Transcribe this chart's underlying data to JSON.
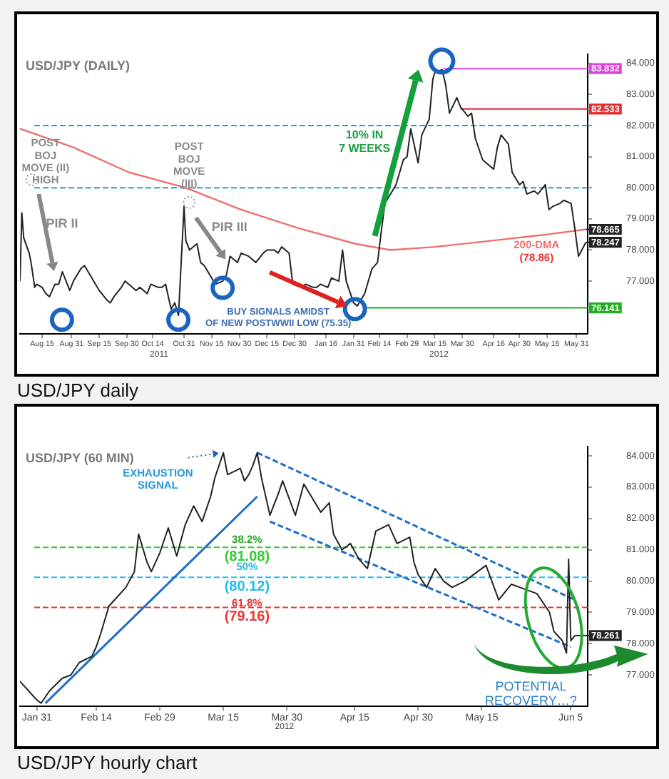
{
  "chart_data": [
    {
      "type": "line",
      "title": "USD/JPY (DAILY)",
      "xlim": [
        "2011-08-03",
        "2012-06-06"
      ],
      "xticks": [
        {
          "value": "2011-08-15",
          "label": "Aug 15"
        },
        {
          "value": "2011-08-31",
          "label": "Aug 31"
        },
        {
          "value": "2011-09-15",
          "label": "Sep 15"
        },
        {
          "value": "2011-09-30",
          "label": "Sep 30"
        },
        {
          "value": "2011-10-14",
          "label": "Oct 14"
        },
        {
          "value": "2011-10-31",
          "label": "Oct 31"
        },
        {
          "value": "2011-11-15",
          "label": "Nov 15"
        },
        {
          "value": "2011-11-30",
          "label": "Nov 30"
        },
        {
          "value": "2011-12-15",
          "label": "Dec 15"
        },
        {
          "value": "2011-12-30",
          "label": "Dec 30"
        },
        {
          "value": "2012-01-16",
          "label": "Jan 16"
        },
        {
          "value": "2012-01-31",
          "label": "Jan 31"
        },
        {
          "value": "2012-02-14",
          "label": "Feb 14"
        },
        {
          "value": "2012-02-29",
          "label": "Feb 29"
        },
        {
          "value": "2012-03-15",
          "label": "Mar 15"
        },
        {
          "value": "2012-03-30",
          "label": "Mar 30"
        },
        {
          "value": "2012-04-16",
          "label": "Apr 16"
        },
        {
          "value": "2012-04-30",
          "label": "Apr 30"
        },
        {
          "value": "2012-05-15",
          "label": "May 15"
        },
        {
          "value": "2012-05-31",
          "label": "May 31"
        }
      ],
      "ylim": [
        75.3,
        84.3
      ],
      "yticks": [
        {
          "value": 77,
          "label": "77.000"
        },
        {
          "value": 78,
          "label": "78.000"
        },
        {
          "value": 79,
          "label": "79.000"
        },
        {
          "value": 80,
          "label": "80.000"
        },
        {
          "value": 81,
          "label": "81.000"
        },
        {
          "value": 82,
          "label": "82.000"
        },
        {
          "value": 83,
          "label": "83.000"
        },
        {
          "value": 84,
          "label": "84.000"
        }
      ],
      "series": [
        {
          "color": "#222222",
          "x": [
            "2011-08-03",
            "2011-08-04",
            "2011-08-05",
            "2011-08-08",
            "2011-08-09",
            "2011-08-11",
            "2011-08-12",
            "2011-08-15",
            "2011-08-17",
            "2011-08-19",
            "2011-08-22",
            "2011-08-24",
            "2011-08-26",
            "2011-08-30",
            "2011-09-01",
            "2011-09-05",
            "2011-09-07",
            "2011-09-09",
            "2011-09-13",
            "2011-09-15",
            "2011-09-19",
            "2011-09-21",
            "2011-09-23",
            "2011-09-27",
            "2011-09-29",
            "2011-10-03",
            "2011-10-05",
            "2011-10-07",
            "2011-10-11",
            "2011-10-13",
            "2011-10-17",
            "2011-10-19",
            "2011-10-21",
            "2011-10-24",
            "2011-10-26",
            "2011-10-28",
            "2011-10-31",
            "2011-11-01",
            "2011-11-03",
            "2011-11-07",
            "2011-11-09",
            "2011-11-11",
            "2011-11-15",
            "2011-11-17",
            "2011-11-21",
            "2011-11-23",
            "2011-11-25",
            "2011-11-29",
            "2011-12-01",
            "2011-12-05",
            "2011-12-07",
            "2011-12-09",
            "2011-12-13",
            "2011-12-15",
            "2011-12-19",
            "2011-12-21",
            "2011-12-23",
            "2011-12-27",
            "2011-12-29",
            "2012-01-03",
            "2012-01-05",
            "2012-01-09",
            "2012-01-11",
            "2012-01-13",
            "2012-01-17",
            "2012-01-19",
            "2012-01-23",
            "2012-01-25",
            "2012-01-27",
            "2012-01-31",
            "2012-02-02",
            "2012-02-06",
            "2012-02-08",
            "2012-02-10",
            "2012-02-13",
            "2012-02-15",
            "2012-02-17",
            "2012-02-21",
            "2012-02-23",
            "2012-02-27",
            "2012-02-29",
            "2012-03-02",
            "2012-03-06",
            "2012-03-08",
            "2012-03-12",
            "2012-03-14",
            "2012-03-15",
            "2012-03-19",
            "2012-03-21",
            "2012-03-23",
            "2012-03-27",
            "2012-03-29",
            "2012-04-02",
            "2012-04-04",
            "2012-04-06",
            "2012-04-10",
            "2012-04-12",
            "2012-04-16",
            "2012-04-18",
            "2012-04-20",
            "2012-04-24",
            "2012-04-26",
            "2012-04-30",
            "2012-05-02",
            "2012-05-04",
            "2012-05-08",
            "2012-05-10",
            "2012-05-14",
            "2012-05-16",
            "2012-05-18",
            "2012-05-22",
            "2012-05-24",
            "2012-05-28",
            "2012-05-30",
            "2012-06-01",
            "2012-06-05"
          ],
          "values": [
            77.0,
            79.2,
            78.4,
            77.9,
            77.6,
            76.8,
            76.9,
            76.8,
            76.6,
            76.5,
            76.9,
            76.9,
            77.3,
            76.7,
            77.0,
            77.4,
            77.5,
            77.3,
            76.9,
            76.7,
            76.4,
            76.3,
            76.5,
            76.8,
            77.0,
            76.8,
            76.7,
            76.8,
            76.6,
            76.9,
            76.8,
            76.8,
            76.9,
            76.1,
            76.3,
            75.9,
            79.4,
            78.3,
            78.0,
            78.2,
            77.6,
            77.5,
            77.1,
            76.9,
            77.0,
            77.2,
            77.8,
            77.6,
            77.9,
            77.8,
            77.7,
            77.6,
            77.9,
            78.0,
            78.0,
            77.9,
            78.1,
            77.9,
            76.9,
            76.8,
            76.9,
            76.8,
            76.8,
            76.9,
            76.8,
            77.1,
            77.0,
            78.0,
            77.0,
            76.3,
            76.2,
            76.6,
            77.0,
            77.4,
            77.6,
            78.6,
            79.5,
            79.9,
            80.1,
            80.9,
            81.0,
            81.9,
            80.8,
            81.7,
            82.2,
            83.5,
            83.7,
            83.8,
            83.3,
            82.4,
            82.9,
            82.6,
            82.3,
            82.4,
            81.6,
            80.9,
            80.8,
            80.6,
            81.3,
            81.7,
            81.4,
            80.5,
            80.1,
            80.2,
            79.8,
            79.9,
            79.8,
            80.1,
            79.3,
            79.4,
            79.5,
            79.6,
            79.5,
            78.7,
            77.8,
            78.247
          ]
        },
        {
          "name": "200-DMA",
          "color": "#f07070",
          "x": [
            "2011-08-03",
            "2011-09-01",
            "2011-10-01",
            "2011-11-01",
            "2011-12-01",
            "2012-01-01",
            "2012-02-01",
            "2012-02-20",
            "2012-03-15",
            "2012-04-15",
            "2012-05-15",
            "2012-06-05"
          ],
          "values": [
            81.9,
            81.3,
            80.5,
            80.0,
            79.3,
            78.7,
            78.2,
            78.0,
            78.1,
            78.3,
            78.5,
            78.665
          ]
        }
      ],
      "ref_lines": [
        {
          "axis": "y",
          "value": 80,
          "color": "#2a9ad8",
          "line_style": "dashed"
        },
        {
          "axis": "y",
          "value": 82,
          "color": "#2a9ad8",
          "line_style": "dashed"
        },
        {
          "axis": "y",
          "value": 83.832,
          "label": "83.832",
          "color": "#e040e0"
        },
        {
          "axis": "y",
          "value": 82.533,
          "label": "82.533",
          "color": "#e03030"
        },
        {
          "axis": "y",
          "value": 76.141,
          "label": "76.141",
          "color": "#20b020"
        }
      ],
      "annotations": [
        "POST\nBOJ\nMOVE (II)\nHIGH",
        "POST\nBOJ\nMOVE\n(III)",
        "PIR II",
        "PIR III",
        "10% IN\n7 WEEKS",
        "(78.86)",
        "BUY SIGNALS AMIDST\nOF NEW POSTWWII LOW (75.35)",
        "2011",
        "2012",
        "USD/JPY daily",
        {
          "text": "78.665",
          "x": "2012-06-05",
          "y": 78.665
        },
        {
          "text": "78.247",
          "x": "2012-06-05",
          "y": 78.247
        }
      ]
    },
    {
      "type": "line",
      "title": "USD/JPY (60 MIN)",
      "xlim": [
        "2012-01-27",
        "2012-06-09"
      ],
      "xticks": [
        {
          "value": "2012-01-31",
          "label": "Jan 31"
        },
        {
          "value": "2012-02-14",
          "label": "Feb 14"
        },
        {
          "value": "2012-02-29",
          "label": "Feb 29"
        },
        {
          "value": "2012-03-15",
          "label": "Mar 15"
        },
        {
          "value": "2012-03-30",
          "label": "Mar 30"
        },
        {
          "value": "2012-04-15",
          "label": "Apr 15"
        },
        {
          "value": "2012-04-30",
          "label": "Apr 30"
        },
        {
          "value": "2012-05-15",
          "label": "May 15"
        },
        {
          "value": "2012-06-05",
          "label": "Jun 5"
        }
      ],
      "ylim": [
        76.0,
        84.3
      ],
      "yticks": [
        {
          "value": 77,
          "label": "77.000"
        },
        {
          "value": 78,
          "label": "78.000"
        },
        {
          "value": 79,
          "label": "79.000"
        },
        {
          "value": 80,
          "label": "80.000"
        },
        {
          "value": 81,
          "label": "81.000"
        },
        {
          "value": 82,
          "label": "82.000"
        },
        {
          "value": 83,
          "label": "83.000"
        },
        {
          "value": 84,
          "label": "84.000"
        }
      ],
      "series": [
        {
          "color": "#222222",
          "x": [
            "2012-01-27",
            "2012-01-29",
            "2012-01-31",
            "2012-02-01",
            "2012-02-03",
            "2012-02-06",
            "2012-02-08",
            "2012-02-10",
            "2012-02-13",
            "2012-02-14",
            "2012-02-15",
            "2012-02-17",
            "2012-02-19",
            "2012-02-21",
            "2012-02-23",
            "2012-02-24",
            "2012-02-26",
            "2012-02-27",
            "2012-02-29",
            "2012-03-02",
            "2012-03-04",
            "2012-03-06",
            "2012-03-08",
            "2012-03-10",
            "2012-03-12",
            "2012-03-13",
            "2012-03-14",
            "2012-03-15",
            "2012-03-16",
            "2012-03-19",
            "2012-03-20",
            "2012-03-21",
            "2012-03-22",
            "2012-03-23",
            "2012-03-24",
            "2012-03-26",
            "2012-03-28",
            "2012-03-29",
            "2012-04-01",
            "2012-04-03",
            "2012-04-07",
            "2012-04-09",
            "2012-04-10",
            "2012-04-12",
            "2012-04-14",
            "2012-04-16",
            "2012-04-18",
            "2012-04-20",
            "2012-04-23",
            "2012-04-25",
            "2012-04-28",
            "2012-04-29",
            "2012-04-30",
            "2012-05-02",
            "2012-05-04",
            "2012-05-06",
            "2012-05-08",
            "2012-05-11",
            "2012-05-14",
            "2012-05-16",
            "2012-05-19",
            "2012-05-22",
            "2012-05-24",
            "2012-05-28",
            "2012-05-31",
            "2012-06-01",
            "2012-06-03",
            "2012-06-04",
            "2012-06-04T12:00",
            "2012-06-05",
            "2012-06-06"
          ],
          "values": [
            76.8,
            76.5,
            76.2,
            76.1,
            76.5,
            76.9,
            77.0,
            77.4,
            77.6,
            77.9,
            78.3,
            79.2,
            79.5,
            79.8,
            80.3,
            81.5,
            80.6,
            80.3,
            80.9,
            81.7,
            80.8,
            81.8,
            82.4,
            81.9,
            82.7,
            83.3,
            83.7,
            84.1,
            83.4,
            83.6,
            83.2,
            83.4,
            83.7,
            84.1,
            83.3,
            82.1,
            82.8,
            83.2,
            82.1,
            83.1,
            82.2,
            82.5,
            81.5,
            81.0,
            81.2,
            80.7,
            80.4,
            81.6,
            81.8,
            81.2,
            81.4,
            80.6,
            80.2,
            79.8,
            80.4,
            80.0,
            79.8,
            80.0,
            80.3,
            80.5,
            79.4,
            79.9,
            79.8,
            79.6,
            79.0,
            78.4,
            78.1,
            77.7,
            80.7,
            78.1,
            78.261
          ]
        },
        {
          "color": "#1f6fc4",
          "x": [
            "2012-02-02",
            "2012-03-23"
          ],
          "values": [
            76.1,
            82.7
          ]
        },
        {
          "color": "#1f6fc4",
          "line_style": "dashed",
          "x": [
            "2012-03-23",
            "2012-06-06"
          ],
          "values": [
            84.1,
            79.4
          ]
        },
        {
          "color": "#1f6fc4",
          "line_style": "dashed",
          "x": [
            "2012-03-26",
            "2012-06-05"
          ],
          "values": [
            81.9,
            77.9
          ]
        }
      ],
      "ref_lines": [
        {
          "axis": "y",
          "value": 81.08,
          "label": "(81.08)",
          "color": "#33cc33",
          "line_style": "dashed"
        },
        {
          "axis": "y",
          "value": 80.12,
          "label": "(80.12)",
          "color": "#22bbee",
          "line_style": "dashed"
        },
        {
          "axis": "y",
          "value": 79.16,
          "label": "(79.16)",
          "color": "#ee3333",
          "line_style": "dashed"
        }
      ],
      "annotations": [
        "EXHAUSTION\nSIGNAL",
        "38.2%",
        "50%",
        "61.8%",
        "POTENTIAL\nRECOVERY…?",
        "2012",
        "USD/JPY hourly chart",
        {
          "text": "78.261",
          "x": "2012-06-06",
          "y": 78.261
        }
      ]
    }
  ]
}
